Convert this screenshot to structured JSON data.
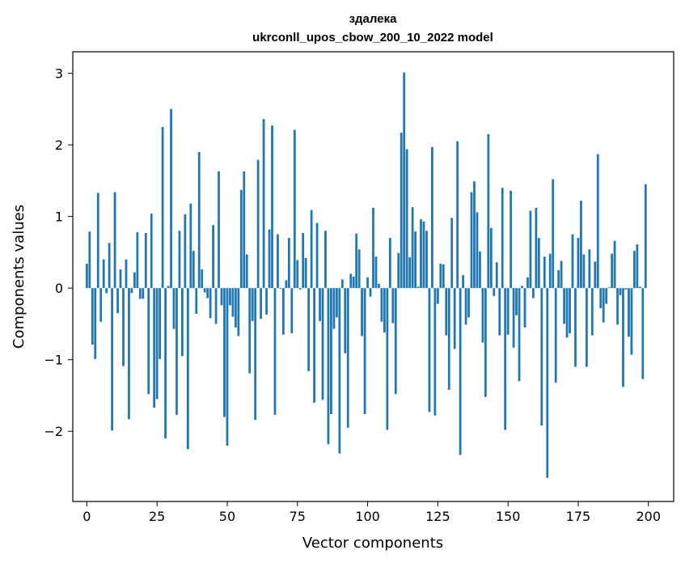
{
  "chart_data": {
    "type": "bar",
    "title": "здалека",
    "subtitle": "ukrconll_upos_cbow_200_10_2022 model",
    "xlabel": "Vector components",
    "ylabel": "Components values",
    "xlim": [
      -5,
      209
    ],
    "ylim": [
      -2.98,
      3.3
    ],
    "xticks": [
      0,
      25,
      50,
      75,
      100,
      125,
      150,
      175,
      200
    ],
    "xtick_labels": [
      "0",
      "25",
      "50",
      "75",
      "100",
      "125",
      "150",
      "175",
      "200"
    ],
    "yticks": [
      -2,
      -1,
      0,
      1,
      2,
      3
    ],
    "ytick_labels": [
      "−2",
      "−1",
      "0",
      "1",
      "2",
      "3"
    ],
    "grid": false,
    "bar_color": "#1f77b4",
    "x": [
      0,
      1,
      2,
      3,
      4,
      5,
      6,
      7,
      8,
      9,
      10,
      11,
      12,
      13,
      14,
      15,
      16,
      17,
      18,
      19,
      20,
      21,
      22,
      23,
      24,
      25,
      26,
      27,
      28,
      29,
      30,
      31,
      32,
      33,
      34,
      35,
      36,
      37,
      38,
      39,
      40,
      41,
      42,
      43,
      44,
      45,
      46,
      47,
      48,
      49,
      50,
      51,
      52,
      53,
      54,
      55,
      56,
      57,
      58,
      59,
      60,
      61,
      62,
      63,
      64,
      65,
      66,
      67,
      68,
      69,
      70,
      71,
      72,
      73,
      74,
      75,
      76,
      77,
      78,
      79,
      80,
      81,
      82,
      83,
      84,
      85,
      86,
      87,
      88,
      89,
      90,
      91,
      92,
      93,
      94,
      95,
      96,
      97,
      98,
      99,
      100,
      101,
      102,
      103,
      104,
      105,
      106,
      107,
      108,
      109,
      110,
      111,
      112,
      113,
      114,
      115,
      116,
      117,
      118,
      119,
      120,
      121,
      122,
      123,
      124,
      125,
      126,
      127,
      128,
      129,
      130,
      131,
      132,
      133,
      134,
      135,
      136,
      137,
      138,
      139,
      140,
      141,
      142,
      143,
      144,
      145,
      146,
      147,
      148,
      149,
      150,
      151,
      152,
      153,
      154,
      155,
      156,
      157,
      158,
      159,
      160,
      161,
      162,
      163,
      164,
      165,
      166,
      167,
      168,
      169,
      170,
      171,
      172,
      173,
      174,
      175,
      176,
      177,
      178,
      179,
      180,
      181,
      182,
      183,
      184,
      185,
      186,
      187,
      188,
      189,
      190,
      191,
      192,
      193,
      194,
      195,
      196,
      197,
      198,
      199
    ],
    "values": [
      0.34,
      0.79,
      -0.79,
      -0.99,
      1.33,
      -0.47,
      0.4,
      -0.07,
      0.63,
      -1.99,
      1.34,
      -0.35,
      0.26,
      -1.09,
      0.4,
      -1.83,
      -0.07,
      0.22,
      0.78,
      -0.15,
      -0.15,
      0.77,
      -1.48,
      1.04,
      -1.67,
      -1.55,
      -0.99,
      2.25,
      -2.1,
      0.03,
      2.5,
      -0.57,
      -1.77,
      0.8,
      -0.95,
      1.03,
      -2.25,
      1.18,
      0.52,
      -0.36,
      1.9,
      0.26,
      -0.06,
      -0.14,
      -0.42,
      0.88,
      -0.5,
      1.63,
      -0.24,
      -1.8,
      -2.2,
      -0.24,
      -0.4,
      -0.55,
      -0.67,
      1.37,
      1.63,
      0.47,
      -1.19,
      -0.46,
      -1.84,
      1.79,
      -0.43,
      2.36,
      -0.37,
      0.82,
      2.27,
      -1.77,
      0.75,
      -0.01,
      -0.65,
      0.11,
      0.7,
      -0.63,
      2.21,
      0.39,
      -0.02,
      0.77,
      0.42,
      -1.16,
      1.09,
      -1.6,
      0.91,
      -0.46,
      -1.56,
      0.8,
      -2.18,
      -1.76,
      -0.57,
      -0.41,
      -2.31,
      0.12,
      -0.91,
      -1.95,
      0.2,
      0.16,
      0.76,
      0.54,
      -0.67,
      -1.76,
      0.15,
      -0.12,
      1.12,
      0.44,
      0.06,
      -0.47,
      -0.62,
      -1.98,
      0.7,
      -0.49,
      -1.48,
      0.49,
      2.17,
      3.01,
      1.94,
      0.43,
      1.13,
      0.79,
      0.02,
      0.96,
      0.93,
      0.8,
      -1.73,
      1.97,
      -1.78,
      -0.22,
      0.34,
      0.33,
      -0.66,
      -1.42,
      0.98,
      -0.85,
      2.05,
      -2.33,
      0.18,
      -0.51,
      -0.41,
      1.34,
      1.49,
      1.06,
      0.51,
      -0.76,
      -1.52,
      2.15,
      0.84,
      -0.11,
      0.36,
      -0.66,
      1.4,
      -1.98,
      -0.65,
      1.36,
      -0.83,
      -0.38,
      -1.3,
      0.03,
      -0.55,
      0.15,
      1.08,
      -0.14,
      1.12,
      0.7,
      -1.92,
      0.44,
      -2.65,
      0.48,
      1.52,
      -1.32,
      0.25,
      0.38,
      -0.5,
      -0.69,
      -0.63,
      0.75,
      -1.1,
      0.7,
      1.22,
      0.47,
      -1.1,
      0.54,
      -0.66,
      0.37,
      1.87,
      -0.28,
      -0.48,
      -0.22,
      0.01,
      0.48,
      0.66,
      -0.51,
      -0.1,
      -1.38,
      -0.02,
      -0.68,
      -0.93,
      0.52,
      0.61,
      0.02,
      -1.27,
      1.45
    ]
  }
}
